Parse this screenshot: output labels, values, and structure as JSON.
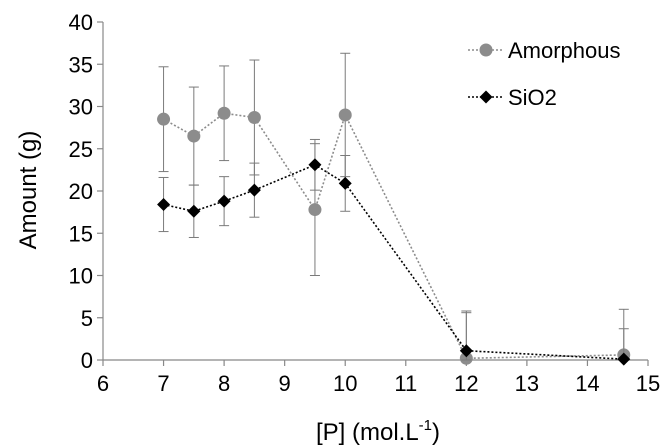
{
  "chart_data": {
    "type": "scatter",
    "xlabel": "[P] (mol.L",
    "xlabel_superscript": "-1",
    "xlabel_suffix": ")",
    "ylabel": "Amount (g)",
    "xlim": [
      6,
      15
    ],
    "ylim": [
      0,
      40
    ],
    "x_ticks": [
      6,
      7,
      8,
      9,
      10,
      11,
      12,
      13,
      14,
      15
    ],
    "y_ticks": [
      0,
      5,
      10,
      15,
      20,
      25,
      30,
      35,
      40
    ],
    "grid": false,
    "legend_position": "top-right",
    "series": [
      {
        "name": "Amorphous",
        "marker": "circle",
        "color": "#8c8c8c",
        "line": "dotted",
        "points": [
          {
            "x": 7.0,
            "y": 28.5,
            "err": 6.2
          },
          {
            "x": 7.5,
            "y": 26.5,
            "err": 5.8
          },
          {
            "x": 8.0,
            "y": 29.2,
            "err": 5.6
          },
          {
            "x": 8.5,
            "y": 28.7,
            "err": 6.8
          },
          {
            "x": 9.5,
            "y": 17.8,
            "err": 7.8
          },
          {
            "x": 10.0,
            "y": 29.0,
            "err": 7.3
          },
          {
            "x": 12.0,
            "y": 0.2,
            "err": 5.6
          },
          {
            "x": 14.6,
            "y": 0.6,
            "err": 5.4
          }
        ]
      },
      {
        "name": "SiO2",
        "marker": "diamond",
        "color": "#000000",
        "line": "dotted",
        "points": [
          {
            "x": 7.0,
            "y": 18.4,
            "err": 3.2
          },
          {
            "x": 7.5,
            "y": 17.6,
            "err": 3.1
          },
          {
            "x": 8.0,
            "y": 18.8,
            "err": 2.9
          },
          {
            "x": 8.5,
            "y": 20.1,
            "err": 3.2
          },
          {
            "x": 9.5,
            "y": 23.1,
            "err": 3.0
          },
          {
            "x": 10.0,
            "y": 20.9,
            "err": 3.3
          },
          {
            "x": 12.0,
            "y": 1.1,
            "err": 4.5
          },
          {
            "x": 14.6,
            "y": 0.1,
            "err": 3.6
          }
        ]
      }
    ]
  }
}
